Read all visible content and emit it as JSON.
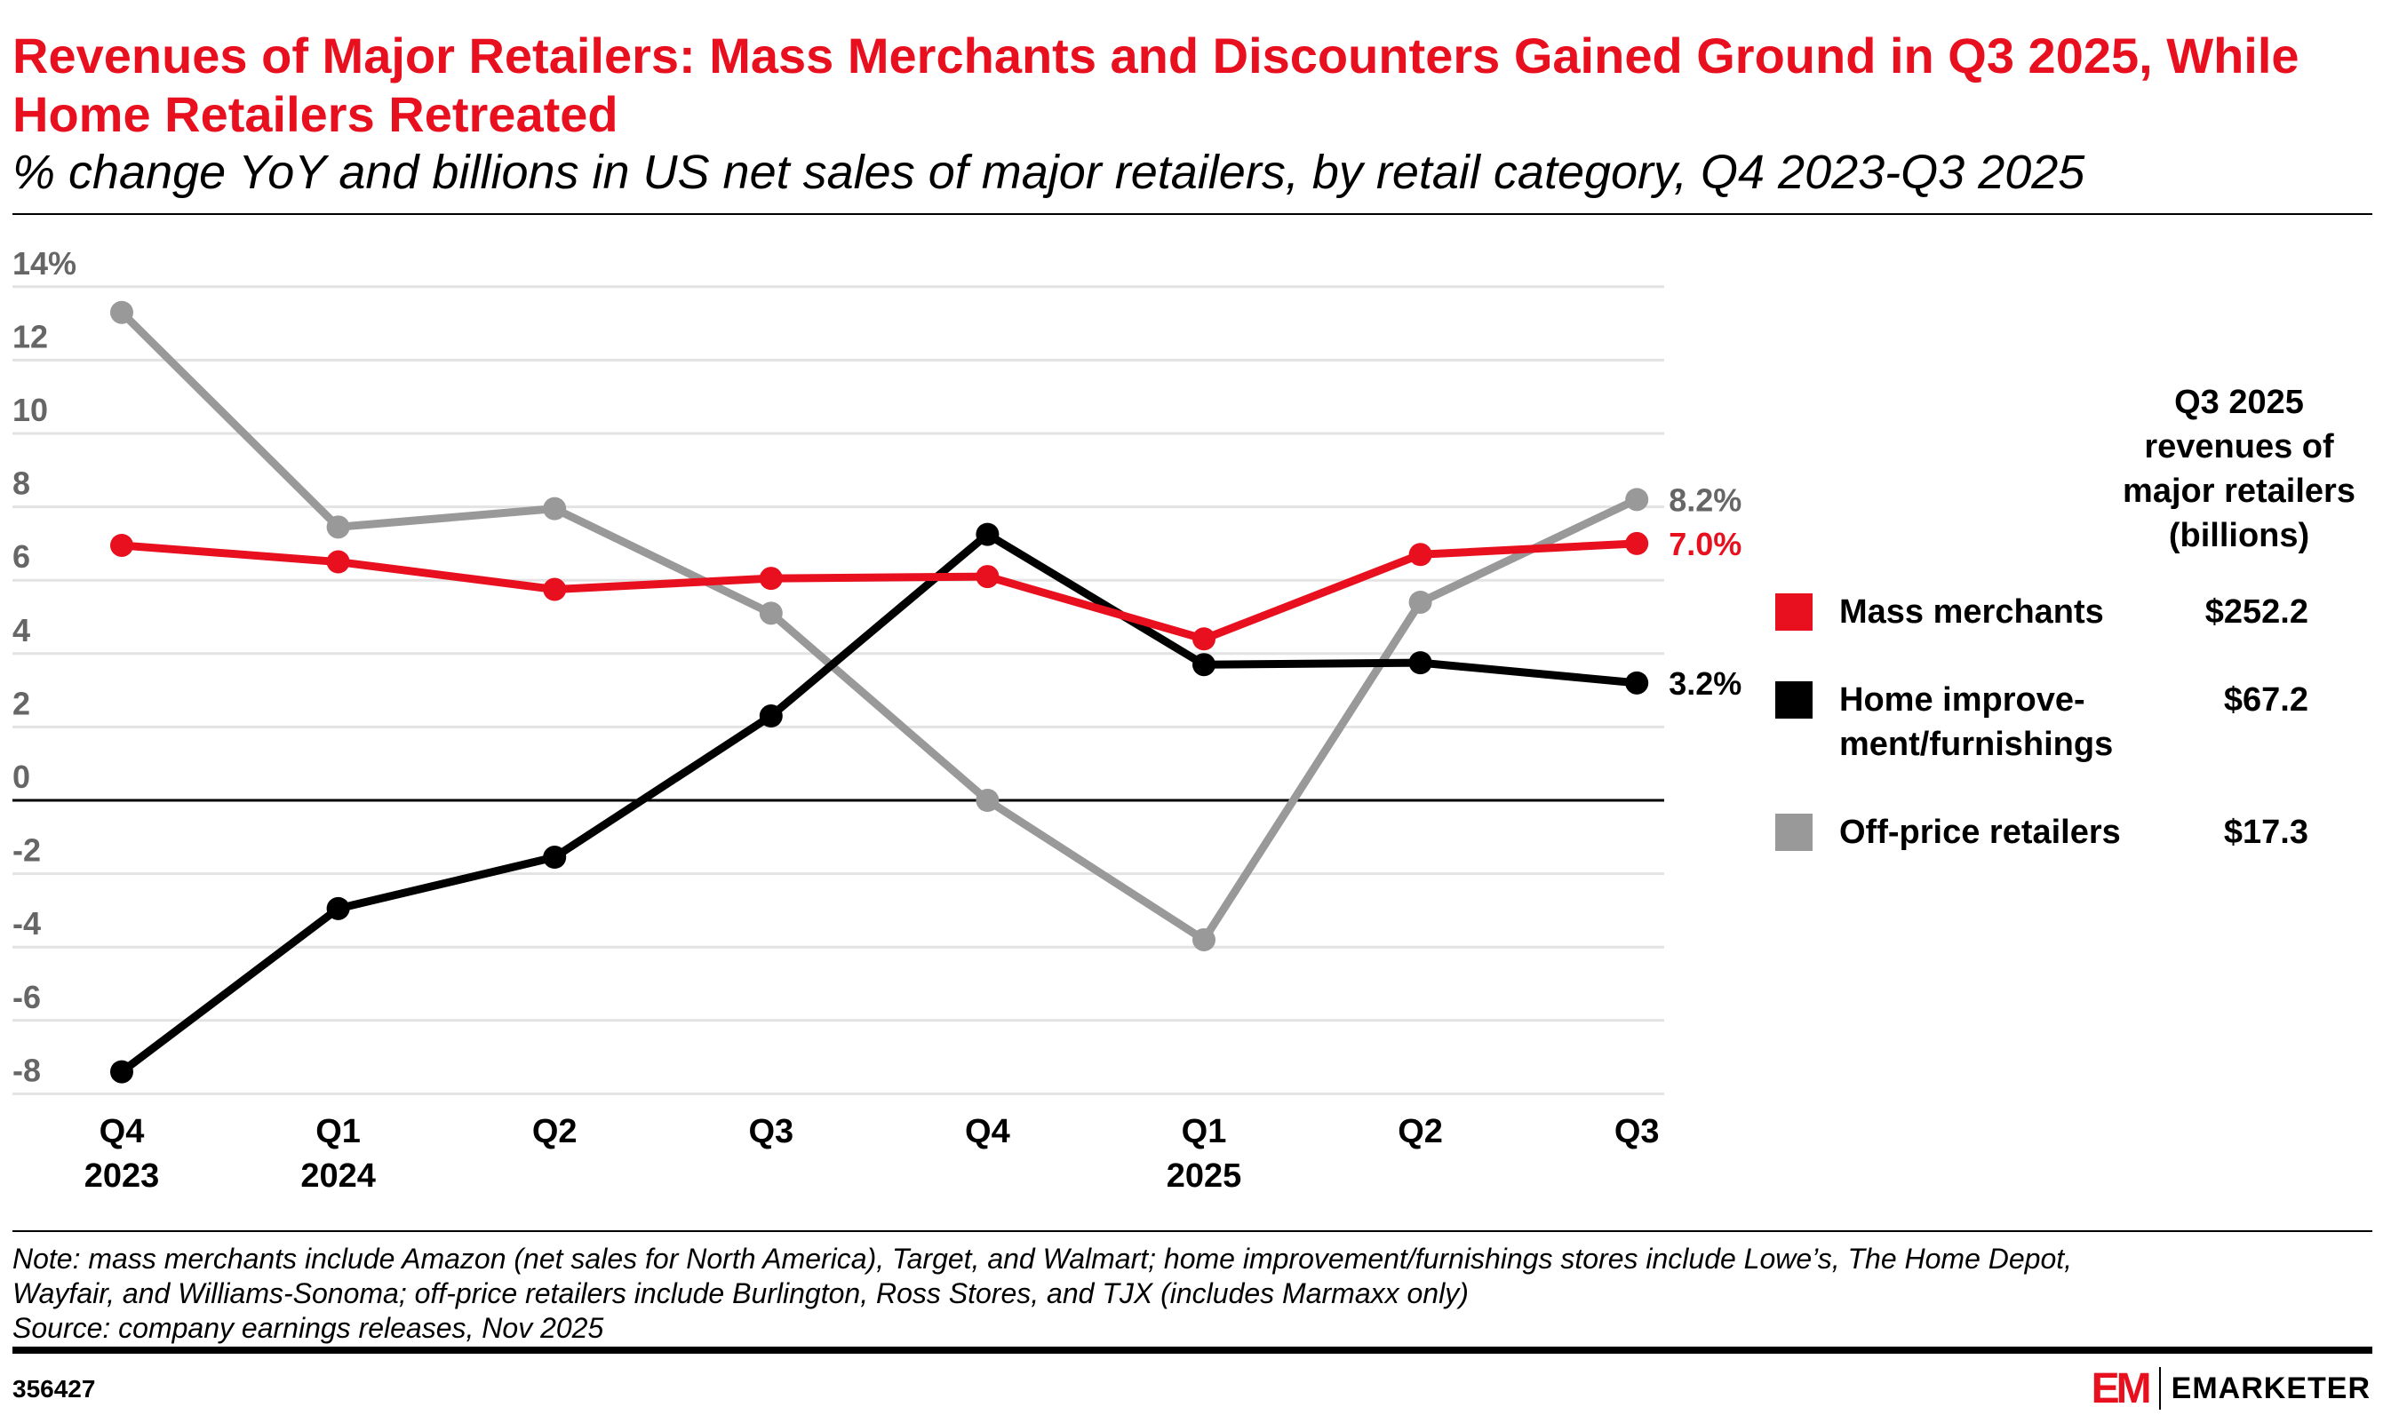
{
  "title": "Revenues of Major Retailers: Mass Merchants and Discounters Gained Ground in Q3 2025, While Home Retailers Retreated",
  "subtitle": "% change YoY and billions in US net sales of major retailers, by retail category, Q4 2023-Q3 2025",
  "chart_data": {
    "type": "line",
    "categories": [
      "Q4 2023",
      "Q1 2024",
      "Q2",
      "Q3",
      "Q4",
      "Q1 2025",
      "Q2",
      "Q3"
    ],
    "x_tick_labels": [
      [
        "Q4",
        "2023"
      ],
      [
        "Q1",
        "2024"
      ],
      [
        "Q2",
        ""
      ],
      [
        "Q3",
        ""
      ],
      [
        "Q4",
        ""
      ],
      [
        "Q1",
        "2025"
      ],
      [
        "Q2",
        ""
      ],
      [
        "Q3",
        ""
      ]
    ],
    "y_tick_labels": [
      "14%",
      "12",
      "10",
      "8",
      "6",
      "4",
      "2",
      "0",
      "-2",
      "-4",
      "-6",
      "-8"
    ],
    "y_ticks": [
      14,
      12,
      10,
      8,
      6,
      4,
      2,
      0,
      -2,
      -4,
      -6,
      -8
    ],
    "ylim": [
      -8,
      14
    ],
    "grid": true,
    "series": [
      {
        "name": "Mass merchants",
        "color": "#e8101e",
        "values": [
          6.95,
          6.5,
          5.75,
          6.05,
          6.1,
          4.4,
          6.7,
          7.0
        ],
        "end_label": "7.0%",
        "revenue": "$252.2"
      },
      {
        "name": "Home improve-ment/furnishings",
        "label_lines": [
          "Home improve-",
          "ment/furnishings"
        ],
        "color": "#000000",
        "values": [
          -7.4,
          -2.95,
          -1.55,
          2.3,
          7.25,
          3.7,
          3.75,
          3.2
        ],
        "end_label": "3.2%",
        "revenue": "$67.2"
      },
      {
        "name": "Off-price retailers",
        "color": "#999999",
        "values": [
          13.3,
          7.45,
          7.95,
          5.1,
          0.0,
          -3.8,
          5.4,
          8.2
        ],
        "end_label": "8.2%",
        "revenue": "$17.3"
      }
    ],
    "legend_title_lines": [
      "Q3 2025",
      "revenues of",
      "major retailers",
      "(billions)"
    ],
    "legend_placement": "right"
  },
  "notes": [
    "Note: mass merchants include Amazon (net sales for North America), Target, and Walmart; home improvement/furnishings stores include Lowe’s, The Home Depot,",
    "Wayfair, and Williams-Sonoma; off-price retailers include Burlington, Ross Stores, and TJX (includes Marmaxx only)",
    "Source: company earnings releases, Nov 2025"
  ],
  "chart_id": "356427",
  "brand": "EMARKETER",
  "brand_mark": "EM"
}
